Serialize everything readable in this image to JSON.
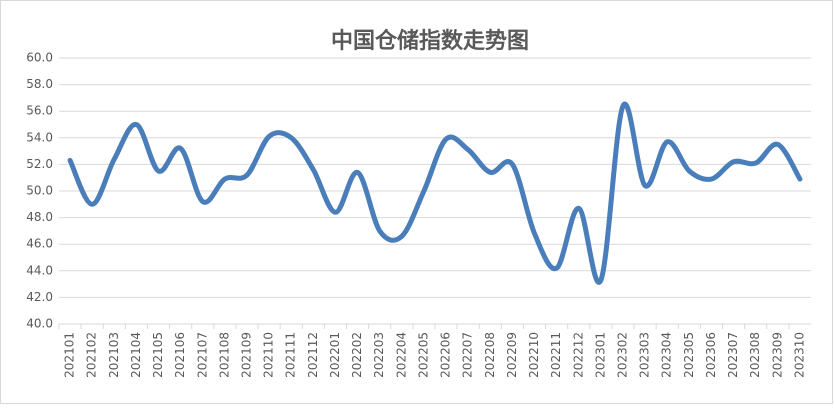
{
  "chart_data": {
    "type": "line",
    "title": "中国仓储指数走势图",
    "categories": [
      "202101",
      "202102",
      "202103",
      "202104",
      "202105",
      "202106",
      "202107",
      "202108",
      "202109",
      "202110",
      "202111",
      "202112",
      "202201",
      "202202",
      "202203",
      "202204",
      "202205",
      "202206",
      "202207",
      "202208",
      "202209",
      "202210",
      "202211",
      "202212",
      "202301",
      "202302",
      "202303",
      "202304",
      "202305",
      "202306",
      "202307",
      "202308",
      "202309",
      "202310"
    ],
    "values": [
      52.3,
      49.0,
      52.4,
      55.0,
      51.5,
      53.2,
      49.2,
      50.9,
      51.2,
      54.1,
      54.0,
      51.6,
      48.4,
      51.4,
      47.0,
      46.6,
      50.0,
      53.9,
      53.1,
      51.4,
      52.0,
      46.8,
      44.2,
      48.7,
      43.3,
      56.4,
      50.4,
      53.7,
      51.5,
      50.9,
      52.2,
      52.1,
      53.5,
      50.9
    ],
    "color": "#4a7ebb",
    "ylim": [
      40,
      60
    ],
    "yticks": [
      {
        "value": 40,
        "label": "40.0"
      },
      {
        "value": 42,
        "label": "42.0"
      },
      {
        "value": 44,
        "label": "44.0"
      },
      {
        "value": 46,
        "label": "46.0"
      },
      {
        "value": 48,
        "label": "48.0"
      },
      {
        "value": 50,
        "label": "50.0"
      },
      {
        "value": 52,
        "label": "52.0"
      },
      {
        "value": 54,
        "label": "54.0"
      },
      {
        "value": 56,
        "label": "56.0"
      },
      {
        "value": 58,
        "label": "58.0"
      },
      {
        "value": 60,
        "label": "60.0"
      }
    ],
    "grid": true
  }
}
